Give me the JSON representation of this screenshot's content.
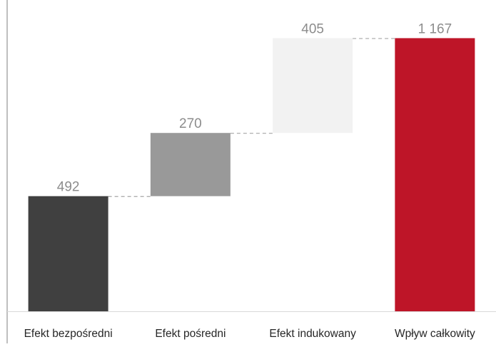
{
  "chart_data": {
    "type": "bar",
    "subtype": "waterfall",
    "title": "",
    "xlabel": "",
    "ylabel": "",
    "ylim": [
      0,
      1330
    ],
    "grid": false,
    "legend": "none",
    "categories": [
      "Efekt bezpośredni",
      "Efekt pośredni",
      "Efekt indukowany",
      "Wpływ całkowity"
    ],
    "values": [
      492,
      270,
      405,
      1167
    ],
    "bases": [
      0,
      492,
      762,
      0
    ],
    "value_labels": [
      "492",
      "270",
      "405",
      "1 167"
    ],
    "colors": [
      "#404040",
      "#999999",
      "#f2f2f2",
      "#be1528"
    ],
    "connector_color": "#a6a6a6",
    "axis_color": "#7f7f7f",
    "label_color": "#8c8c8c"
  }
}
